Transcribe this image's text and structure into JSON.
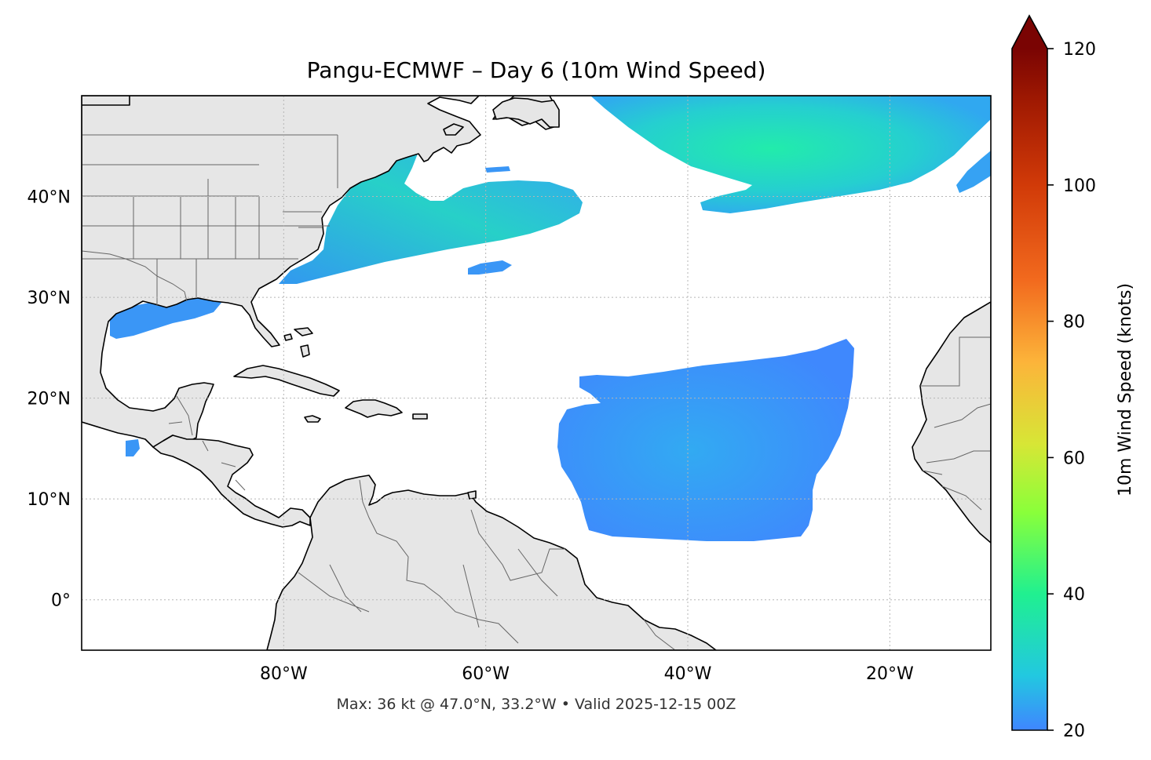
{
  "title": "Pangu-ECMWF – Day 6 (10m Wind Speed)",
  "footer": "Max: 36 kt @ 47.0°N, 33.2°W • Valid 2025-12-15 00Z",
  "map": {
    "lon_range": [
      -100,
      -10
    ],
    "lat_range": [
      -5,
      50
    ],
    "lat_labels": [
      {
        "lat": 40,
        "label": "40°N"
      },
      {
        "lat": 30,
        "label": "30°N"
      },
      {
        "lat": 20,
        "label": "20°N"
      },
      {
        "lat": 10,
        "label": "10°N"
      },
      {
        "lat": 0,
        "label": "0°"
      }
    ],
    "lon_labels": [
      {
        "lon": -80,
        "label": "80°W"
      },
      {
        "lon": -60,
        "label": "60°W"
      },
      {
        "lon": -40,
        "label": "40°W"
      },
      {
        "lon": -20,
        "label": "20°W"
      }
    ],
    "land_color": "#e6e6e6",
    "ocean_color": "#ffffff",
    "gridlines": true
  },
  "colorbar": {
    "label": "10m Wind Speed (knots)",
    "min": 20,
    "max": 120,
    "extend": "max",
    "ticks": [
      {
        "value": 20,
        "label": "20"
      },
      {
        "value": 40,
        "label": "40"
      },
      {
        "value": 60,
        "label": "60"
      },
      {
        "value": 80,
        "label": "80"
      },
      {
        "value": 100,
        "label": "100"
      },
      {
        "value": 120,
        "label": "120"
      }
    ],
    "stops": [
      {
        "value": 20,
        "color": "#3f86ff"
      },
      {
        "value": 28,
        "color": "#22c8e0"
      },
      {
        "value": 40,
        "color": "#20f090"
      },
      {
        "value": 52,
        "color": "#8aff3a"
      },
      {
        "value": 62,
        "color": "#d7e636"
      },
      {
        "value": 74,
        "color": "#fcb43a"
      },
      {
        "value": 86,
        "color": "#f26a1e"
      },
      {
        "value": 100,
        "color": "#d13a08"
      },
      {
        "value": 112,
        "color": "#a11a02"
      },
      {
        "value": 120,
        "color": "#7a0403"
      }
    ]
  },
  "wind_regions": [
    {
      "name": "north-atlantic-jet",
      "color": "#24dcb8",
      "edge_color": "#2fb2ef"
    },
    {
      "name": "us-east-coast-band",
      "color": "#2fc6dc",
      "edge_color": "#3296ef"
    },
    {
      "name": "tropical-atlantic-trades",
      "color": "#3aa2f5",
      "edge_color": "#3f8cff"
    },
    {
      "name": "gulf-of-mexico",
      "color": "#3a96f6",
      "edge_color": "#3a96f6"
    },
    {
      "name": "east-atlantic-patch",
      "color": "#3a96f6",
      "edge_color": "#3a96f6"
    }
  ],
  "max_point": {
    "lat": 47.0,
    "lon": -33.2,
    "speed_kt": 36
  }
}
